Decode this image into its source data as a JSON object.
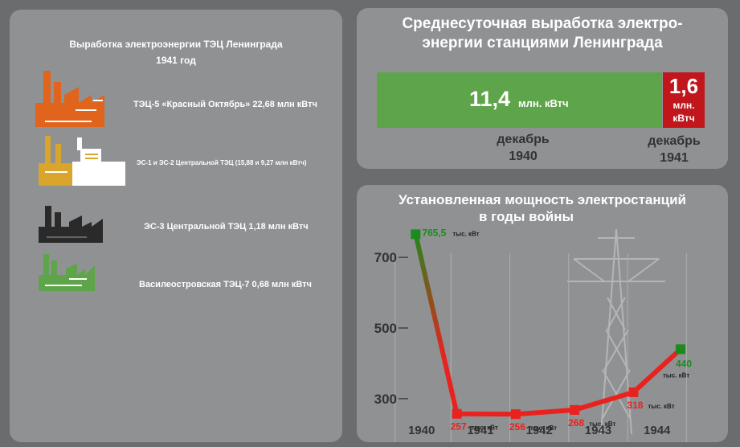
{
  "left_panel": {
    "title_line1": "Выработка электроэнергии ТЭЦ Ленинграда",
    "title_line2": "1941 год",
    "plants": [
      {
        "label": "ТЭЦ-5 «Красный Октябрь» 22,68 млн кВтч",
        "color": "#e0641c",
        "icon": "factory-icon"
      },
      {
        "label": "ЭС-1 и ЭС-2 Центральной ТЭЦ (15,88 и 9,27 млн кВтч)",
        "color": "#d9a52b",
        "icon": "factory-icon"
      },
      {
        "label": "ЭС-3 Центральной ТЭЦ 1,18 млн кВтч",
        "color": "#2a2a2a",
        "icon": "factory-icon"
      },
      {
        "label": "Василеостровская ТЭЦ-7 0,68 млн кВтч",
        "color": "#5ea44a",
        "icon": "factory-icon"
      }
    ]
  },
  "daily_output": {
    "title_line1": "Среднесуточная выработка электро-",
    "title_line2": "энергии станциями Ленинграда",
    "bars": [
      {
        "value": "11,4",
        "unit": "млн. кВтч",
        "month": "декабрь",
        "year": "1940",
        "color": "#5ea44a"
      },
      {
        "value": "1,6",
        "unit_line1": "млн.",
        "unit_line2": "кВтч",
        "month": "декабрь",
        "year": "1941",
        "color": "#c0161c"
      }
    ]
  },
  "capacity_chart": {
    "title_line1": "Установленная мощность электростанций",
    "title_line2": "в годы войны",
    "icon": "power-pylon-icon"
  },
  "chart_data": {
    "type": "line",
    "x": [
      1939.9,
      1940.6,
      1941.6,
      1942.6,
      1943.6,
      1944.4
    ],
    "values": [
      765.5,
      257,
      256,
      268,
      318,
      440
    ],
    "point_labels": [
      "765,5",
      "257",
      "256",
      "268",
      "318",
      "440"
    ],
    "point_unit": "тыс. кВт",
    "xticks": [
      "1940",
      "1941",
      "1942",
      "1943",
      "1944"
    ],
    "yticks": [
      "700",
      "500",
      "300"
    ],
    "ylim": [
      245,
      780
    ],
    "grid": true,
    "colors": {
      "high": "#1d8a1d",
      "low": "#e8231f"
    }
  }
}
